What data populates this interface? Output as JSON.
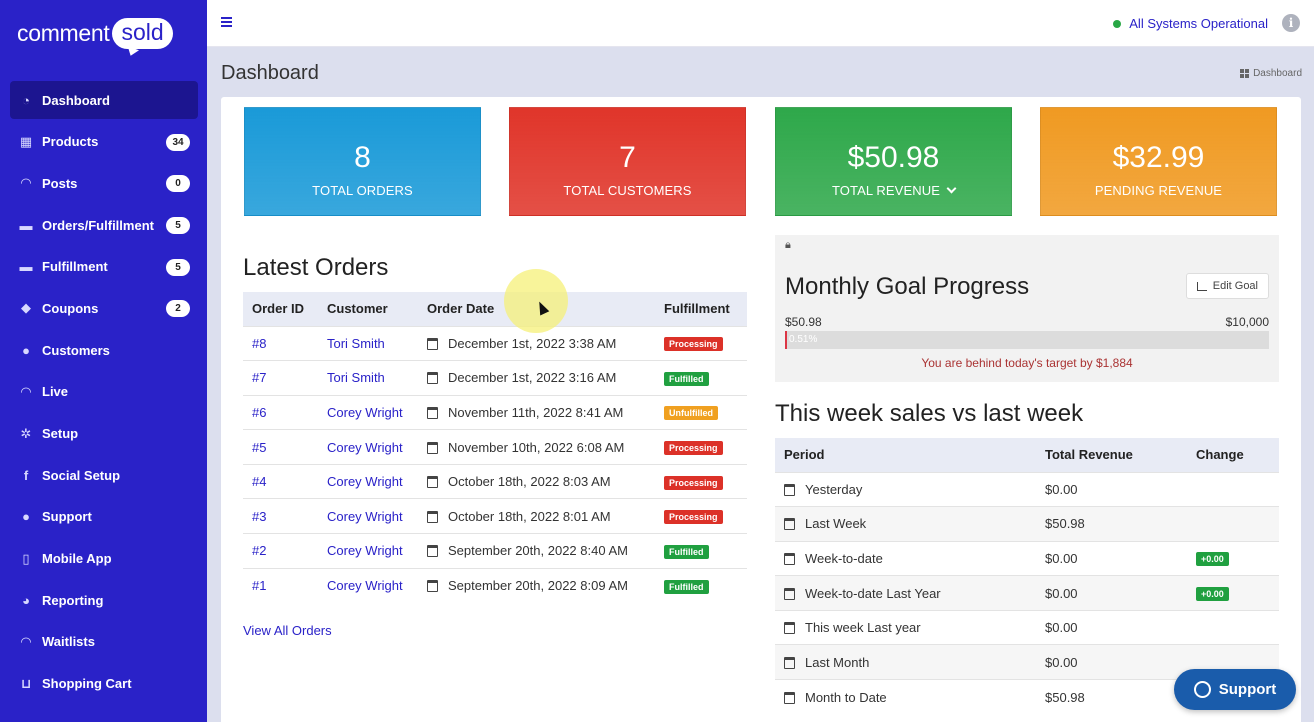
{
  "brand": {
    "logo_left": "comment",
    "logo_right": "sold"
  },
  "sidebar": {
    "items": [
      {
        "label": "Dashboard",
        "icon": "dashboard-icon",
        "badge": ""
      },
      {
        "label": "Products",
        "icon": "grid-icon",
        "badge": "34"
      },
      {
        "label": "Posts",
        "icon": "rss-icon",
        "badge": "0"
      },
      {
        "label": "Orders/Fulfillment",
        "icon": "truck-icon",
        "badge": "5"
      },
      {
        "label": "Fulfillment",
        "icon": "truck-icon",
        "badge": "5"
      },
      {
        "label": "Coupons",
        "icon": "tag-icon",
        "badge": "2"
      },
      {
        "label": "Customers",
        "icon": "user-icon",
        "badge": ""
      },
      {
        "label": "Live",
        "icon": "rss-icon",
        "badge": ""
      },
      {
        "label": "Setup",
        "icon": "gears-icon",
        "badge": ""
      },
      {
        "label": "Social Setup",
        "icon": "facebook-icon",
        "badge": ""
      },
      {
        "label": "Support",
        "icon": "comments-icon",
        "badge": ""
      },
      {
        "label": "Mobile App",
        "icon": "mobile-icon",
        "badge": ""
      },
      {
        "label": "Reporting",
        "icon": "pie-chart-icon",
        "badge": ""
      },
      {
        "label": "Waitlists",
        "icon": "rss-icon",
        "badge": ""
      },
      {
        "label": "Shopping Cart",
        "icon": "cart-icon",
        "badge": ""
      }
    ]
  },
  "topbar": {
    "status": "All Systems Operational",
    "info": "i"
  },
  "header": {
    "title": "Dashboard",
    "breadcrumb": "Dashboard"
  },
  "stats": [
    {
      "value": "8",
      "label": "TOTAL ORDERS",
      "color": "#1a9ad8"
    },
    {
      "value": "7",
      "label": "TOTAL CUSTOMERS",
      "color": "#e0352a"
    },
    {
      "value": "$50.98",
      "label": "TOTAL REVENUE",
      "color": "#2ea84a"
    },
    {
      "value": "$32.99",
      "label": "PENDING REVENUE",
      "color": "#f09a22"
    }
  ],
  "orders": {
    "title": "Latest Orders",
    "columns": [
      "Order ID",
      "Customer",
      "Order Date",
      "Fulfillment"
    ],
    "rows": [
      {
        "id": "#8",
        "customer": "Tori Smith",
        "date": "December 1st, 2022 3:38 AM",
        "status": "Processing"
      },
      {
        "id": "#7",
        "customer": "Tori Smith",
        "date": "December 1st, 2022 3:16 AM",
        "status": "Fulfilled"
      },
      {
        "id": "#6",
        "customer": "Corey Wright",
        "date": "November 11th, 2022 8:41 AM",
        "status": "Unfulfilled"
      },
      {
        "id": "#5",
        "customer": "Corey Wright",
        "date": "November 10th, 2022 6:08 AM",
        "status": "Processing"
      },
      {
        "id": "#4",
        "customer": "Corey Wright",
        "date": "October 18th, 2022 8:03 AM",
        "status": "Processing"
      },
      {
        "id": "#3",
        "customer": "Corey Wright",
        "date": "October 18th, 2022 8:01 AM",
        "status": "Processing"
      },
      {
        "id": "#2",
        "customer": "Corey Wright",
        "date": "September 20th, 2022 8:40 AM",
        "status": "Fulfilled"
      },
      {
        "id": "#1",
        "customer": "Corey Wright",
        "date": "September 20th, 2022 8:09 AM",
        "status": "Fulfilled"
      }
    ],
    "view_all": "View All Orders"
  },
  "goal": {
    "title": "Monthly Goal Progress",
    "edit_label": "Edit Goal",
    "min": "$50.98",
    "max": "$10,000",
    "progress_percent": 0.51,
    "progress_text": "0.51%",
    "message": "You are behind today's target by $1,884"
  },
  "sales": {
    "title": "This week sales vs last week",
    "columns": [
      "Period",
      "Total Revenue",
      "Change"
    ],
    "rows": [
      {
        "period": "Yesterday",
        "revenue": "$0.00",
        "change": ""
      },
      {
        "period": "Last Week",
        "revenue": "$50.98",
        "change": ""
      },
      {
        "period": "Week-to-date",
        "revenue": "$0.00",
        "change": "+0.00"
      },
      {
        "period": "Week-to-date Last Year",
        "revenue": "$0.00",
        "change": "+0.00"
      },
      {
        "period": "This week Last year",
        "revenue": "$0.00",
        "change": ""
      },
      {
        "period": "Last Month",
        "revenue": "$0.00",
        "change": ""
      },
      {
        "period": "Month to Date",
        "revenue": "$50.98",
        "change": ""
      }
    ]
  },
  "support_button": "Support"
}
